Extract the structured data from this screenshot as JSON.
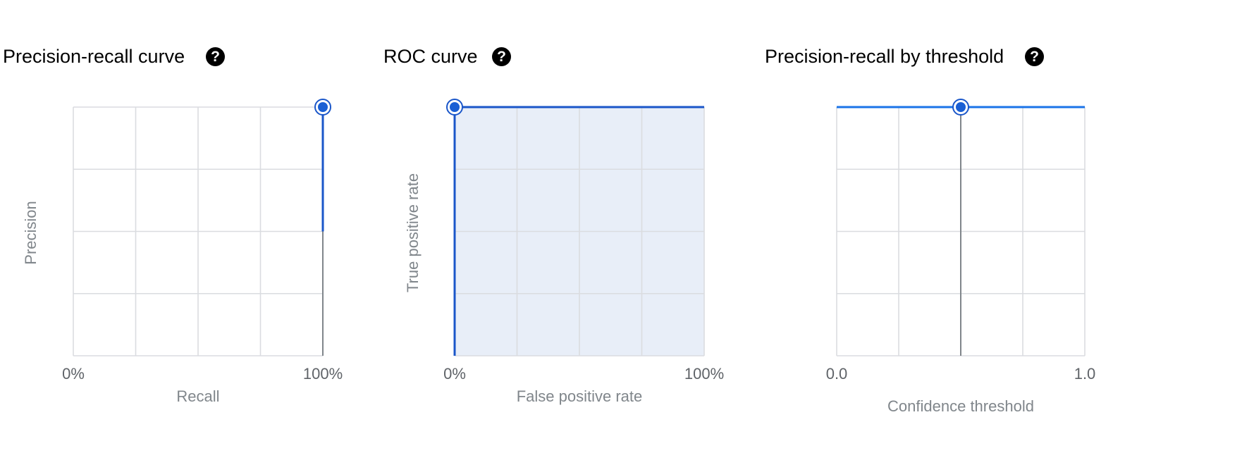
{
  "panels": {
    "pr": {
      "title": "Precision-recall curve"
    },
    "roc": {
      "title": "ROC curve"
    },
    "prt": {
      "title": "Precision-recall by threshold"
    }
  },
  "help_glyph": "?",
  "colors": {
    "accent": "#1967d2",
    "grid": "#dadce0",
    "area_fill": "#e8eef8",
    "guide": "#80868b"
  },
  "icons": [
    "help-icon"
  ],
  "chart_data": [
    {
      "type": "line",
      "title": "Precision-recall curve",
      "xlabel": "Recall",
      "ylabel": "Precision",
      "xlim": [
        0,
        1
      ],
      "ylim": [
        0,
        1
      ],
      "x_tick_labels": [
        "0%",
        "100%"
      ],
      "grid": true,
      "series": [
        {
          "x": [
            1.0,
            1.0
          ],
          "y": [
            0.5,
            1.0
          ]
        }
      ],
      "selected_point": {
        "x": 1.0,
        "y": 1.0
      }
    },
    {
      "type": "area",
      "title": "ROC curve",
      "xlabel": "False positive rate",
      "ylabel": "True positive rate",
      "xlim": [
        0,
        1
      ],
      "ylim": [
        0,
        1
      ],
      "x_tick_labels": [
        "0%",
        "100%"
      ],
      "grid": true,
      "series": [
        {
          "x": [
            0.0,
            0.0,
            1.0
          ],
          "y": [
            0.0,
            1.0,
            1.0
          ]
        }
      ],
      "selected_point": {
        "x": 0.0,
        "y": 1.0
      }
    },
    {
      "type": "line",
      "title": "Precision-recall by threshold",
      "xlabel": "Confidence threshold",
      "ylabel": "",
      "xlim": [
        0,
        1
      ],
      "ylim": [
        0,
        1
      ],
      "x_tick_labels": [
        "0.0",
        "1.0"
      ],
      "grid": true,
      "series": [
        {
          "x": [
            0.0,
            1.0
          ],
          "y": [
            1.0,
            1.0
          ]
        }
      ],
      "selected_threshold": 0.5,
      "selected_point": {
        "x": 0.5,
        "y": 1.0
      }
    }
  ]
}
